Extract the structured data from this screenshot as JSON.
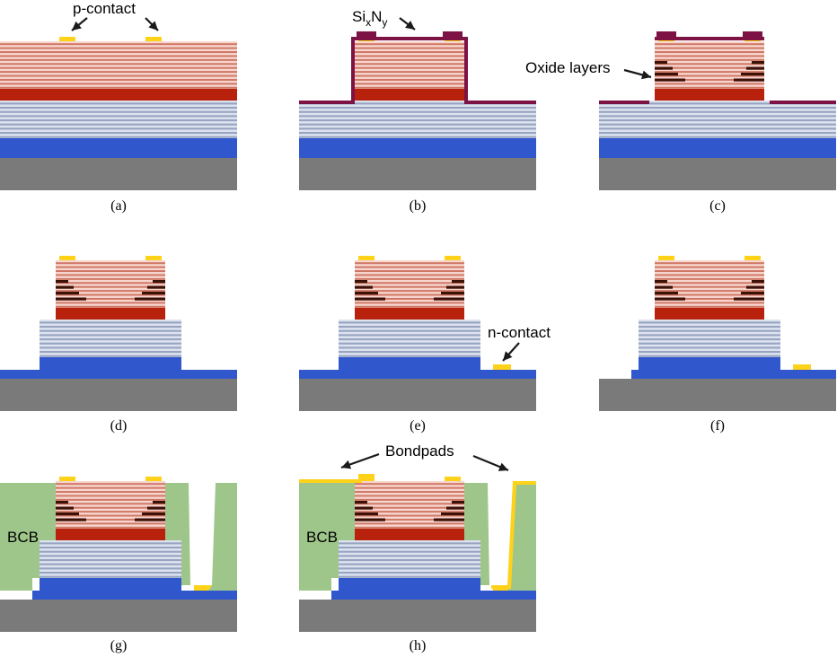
{
  "colors": {
    "substrate": "#7a7a7a",
    "n_layer": "#3057cc",
    "dbr_n_light": "#dde2ef",
    "dbr_n_dark": "#97a4c1",
    "active": "#b8220d",
    "dbr_p_light": "#f7d6cf",
    "dbr_p_dark": "#cf7764",
    "oxide": "#3c1208",
    "contact": "#ffd21a",
    "nitride": "#7d1245",
    "bcb": "#9fc68a",
    "arrow": "#1a1a1a"
  },
  "captions": [
    "(a)",
    "(b)",
    "(c)",
    "(d)",
    "(e)",
    "(f)",
    "(g)",
    "(h)"
  ],
  "annotations": {
    "p_contact": "p-contact",
    "sixny_si": "Si",
    "sixny_x": "x",
    "sixny_n": "N",
    "sixny_y": "y",
    "oxide_layers": "Oxide layers",
    "n_contact": "n-contact",
    "bcb_g": "BCB",
    "bcb_h": "BCB",
    "bondpads": "Bondpads"
  }
}
